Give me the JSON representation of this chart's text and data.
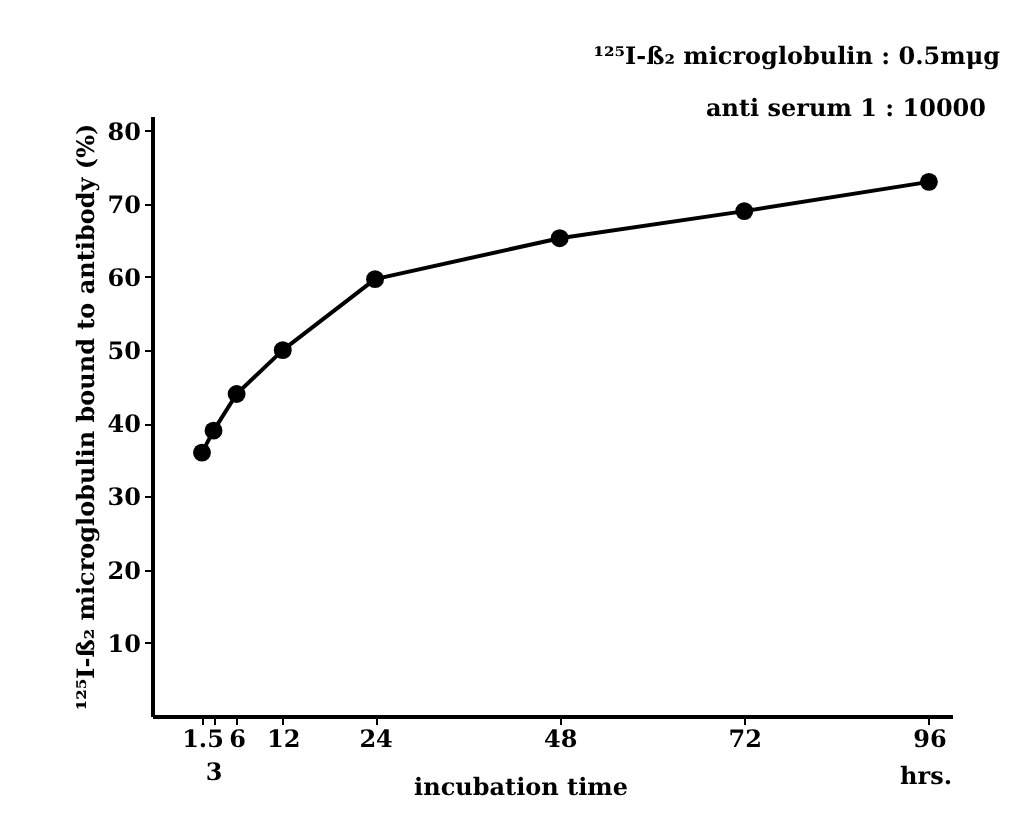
{
  "chart_data": {
    "type": "line",
    "xlabel": "incubation time",
    "ylabel": "¹²⁵I-ß₂ microglobulin bound to antibody (%)",
    "annotations": [
      "¹²⁵I-ß₂ microglobulin : 0.5mμg",
      "anti serum    1 : 10000",
      "hrs.",
      "3"
    ],
    "x": [
      1.5,
      3,
      6,
      12,
      24,
      48,
      72,
      96
    ],
    "series": [
      {
        "color": "#000000",
        "values": [
          36,
          39,
          44,
          50,
          59.7,
          65.3,
          69,
          73
        ]
      }
    ],
    "xlim": [
      -5,
      99
    ],
    "xticks": [
      1.5,
      {
        "value": 3,
        "label": null
      },
      6,
      12,
      24,
      48,
      72,
      96
    ],
    "ylim": [
      0,
      82
    ],
    "yticks": [
      10,
      20,
      30,
      40,
      50,
      60,
      70,
      80
    ],
    "marker": "circle",
    "line_style": "solid",
    "grid": false
  }
}
